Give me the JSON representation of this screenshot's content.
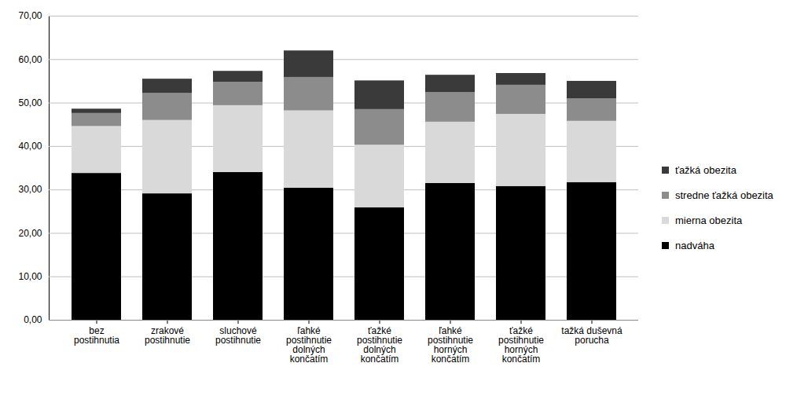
{
  "chart_data": {
    "type": "bar",
    "stacked": true,
    "grid": true,
    "legend": "right",
    "categories": [
      "bez\npostihnutia",
      "zrakové\npostihnutie",
      "sluchové\npostihnutie",
      "ľahké\npostihnutie\ndolných\nkončatím",
      "ťažké\npostihnutie\ndolných\nkončatím",
      "ľahké\npostihnutie\nhorných\nkončatím",
      "ťažké\npostihnutie\nhorných\nkončatím",
      "tažká duševná\nporucha"
    ],
    "series": [
      {
        "name": "nadváha",
        "color": "#000000",
        "values": [
          33.8,
          29.1,
          34.0,
          30.4,
          25.9,
          31.5,
          30.8,
          31.7
        ]
      },
      {
        "name": "mierna obezita",
        "color": "#d9d9d9",
        "values": [
          10.8,
          16.9,
          15.4,
          17.8,
          14.4,
          14.1,
          16.6,
          14.1
        ]
      },
      {
        "name": "stredne ťažká obezita",
        "color": "#8c8c8c",
        "values": [
          3.0,
          6.2,
          5.4,
          7.7,
          8.2,
          6.8,
          6.7,
          5.2
        ]
      },
      {
        "name": "ťažká obezita",
        "color": "#3a3a3a",
        "values": [
          1.0,
          3.3,
          2.5,
          6.1,
          6.6,
          4.0,
          2.7,
          4.0
        ]
      }
    ],
    "ylim": [
      0,
      70
    ],
    "yticks": [
      {
        "value": 0,
        "label": "0,00"
      },
      {
        "value": 10,
        "label": "10,00"
      },
      {
        "value": 20,
        "label": "20,00"
      },
      {
        "value": 30,
        "label": "30,00"
      },
      {
        "value": 40,
        "label": "40,00"
      },
      {
        "value": 50,
        "label": "50,00"
      },
      {
        "value": 60,
        "label": "60,00"
      },
      {
        "value": 70,
        "label": "70,00"
      }
    ]
  }
}
